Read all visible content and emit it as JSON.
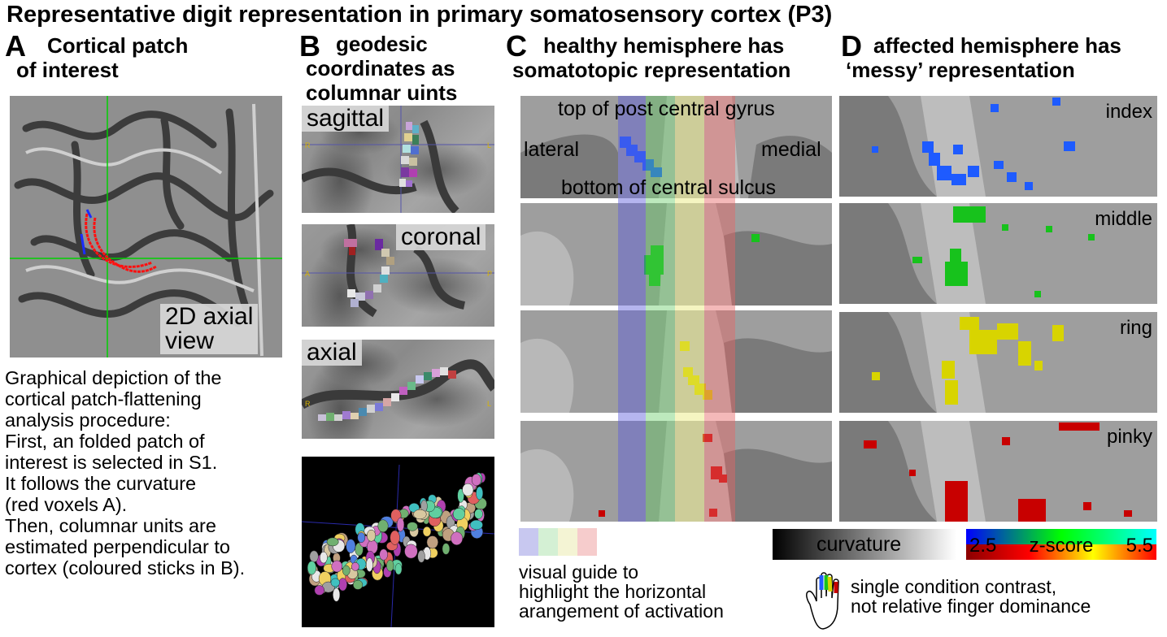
{
  "title": "Representative digit representation in primary somatosensory cortex (P3)",
  "panels": {
    "A": {
      "letter": "A",
      "heading_1": "Cortical patch",
      "heading_2": "of interest",
      "view_label_1": "2D axial",
      "view_label_2": "view"
    },
    "B": {
      "letter": "B",
      "heading_1": "geodesic",
      "heading_2": "coordinates as",
      "heading_3": "columnar uints",
      "views": [
        "sagittal",
        "coronal",
        "axial"
      ],
      "orient": {
        "sag_l": "R",
        "sag_r": "L",
        "cor_l": "A",
        "cor_r": "P",
        "ax_l": "R",
        "ax_r": "L"
      }
    },
    "C": {
      "letter": "C",
      "heading_1": "healthy hemisphere has",
      "heading_2": "somatotopic representation",
      "top_label": "top of post central gyrus",
      "left_label": "lateral",
      "right_label": "medial",
      "bottom_label": "bottom of central sulcus"
    },
    "D": {
      "letter": "D",
      "heading_1": "affected hemisphere has",
      "heading_2": "‘messy’ representation",
      "fingers": [
        "index",
        "middle",
        "ring",
        "pinky"
      ]
    }
  },
  "description": [
    "Graphical depiction of the",
    "cortical patch-flattening",
    "analysis procedure:",
    "First, an folded patch of",
    "interest is selected in S1.",
    "It follows the curvature",
    "(red voxels A).",
    "Then, columnar units are",
    "estimated perpendicular to",
    "cortex (coloured sticks in B)."
  ],
  "guide": {
    "line_1": "visual guide to",
    "line_2": "highlight the horizontal",
    "line_3": "arangement of activation",
    "colors": [
      "#c8c8f0",
      "#d4f0d4",
      "#f4f4d4",
      "#f6cccc"
    ]
  },
  "legend": {
    "curvature_label": "curvature",
    "zscore_label": "z-score",
    "zmin": "2.5",
    "zmax": "5.5",
    "note_1": "single condition contrast,",
    "note_2": "not relative finger dominance"
  },
  "colors": {
    "index": "#1e5bff",
    "middle": "#17c21c",
    "ring": "#d8d400",
    "pinky": "#c80000",
    "band_blue": "#6a6ad8",
    "band_green": "#6ac86a",
    "band_yellow": "#e0e070",
    "band_red": "#e07a7a"
  }
}
